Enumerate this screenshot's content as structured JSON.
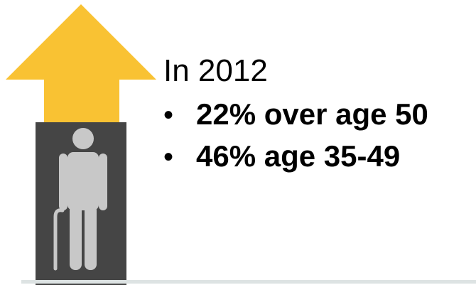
{
  "colors": {
    "arrow": "#F9C233",
    "box": "#454545",
    "figure": "#C8C8C8",
    "baseline": "#DDE3E3"
  },
  "graphic": {
    "arrow_icon": "up-arrow-icon",
    "figure_icon": "elderly-person-with-cane-icon"
  },
  "content": {
    "intro": "In 2012",
    "bullets": [
      {
        "marker": "•",
        "text": "22% over age 50"
      },
      {
        "marker": "•",
        "text": "46% age 35-49"
      }
    ]
  }
}
